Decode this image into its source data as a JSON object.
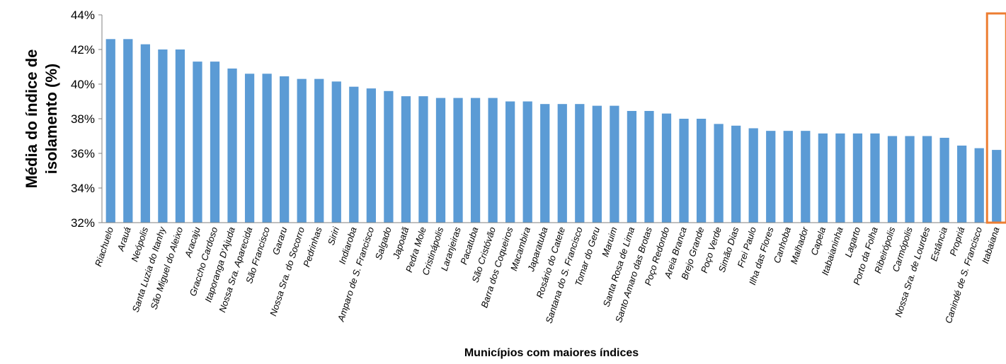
{
  "chart_data": {
    "type": "bar",
    "title": "",
    "xlabel": "Municípios com maiores índices",
    "ylabel_lines": [
      "Média do índice de",
      "isolamento (%)"
    ],
    "ylim": [
      32,
      44
    ],
    "yticks": [
      32,
      34,
      36,
      38,
      40,
      42,
      44
    ],
    "ytick_suffix": "%",
    "grid": false,
    "bar_color": "#5b9bd5",
    "highlight_color": "#ed7d31",
    "highlight_category": "Itabaiana",
    "categories": [
      "Riachuelo",
      "Arauá",
      "Neópolis",
      "Santa Luzia do Itanhy",
      "São Miguel do Aleixo",
      "Aracaju",
      "Graccho Cardoso",
      "Itaporanga D'Ajuda",
      "Nossa Sra. Aparecida",
      "São Francisco",
      "Gararu",
      "Nossa Sra. do Socorro",
      "Pedrinhas",
      "Siriri",
      "Indiaroba",
      "Amparo de S. Francisco",
      "Salgado",
      "Japoatã",
      "Pedra Mole",
      "Cristinápolis",
      "Laranjeiras",
      "Pacatuba",
      "São Cristóvão",
      "Barra dos Coqueiros",
      "Macambira",
      "Japaratuba",
      "Rosário do Catete",
      "Santana do S. Francisco",
      "Tomar do Geru",
      "Maruim",
      "Santa Rosa de Lima",
      "Santo Amaro das Brotas",
      "Poço Redondo",
      "Areia Branca",
      "Brejo Grande",
      "Poço Verde",
      "Simão Dias",
      "Frei Paulo",
      "Ilha das Flores",
      "Canhoba",
      "Malhador",
      "Capela",
      "Itabaianinha",
      "Lagarto",
      "Porto da Folha",
      "Ribeirópolis",
      "Carmópolis",
      "Nossa Sra. de Lourdes",
      "Estância",
      "Propriá",
      "Canindé de S. Francisco",
      "Itabaiana"
    ],
    "values": [
      42.6,
      42.6,
      42.3,
      42.0,
      42.0,
      41.3,
      41.3,
      40.9,
      40.6,
      40.6,
      40.45,
      40.3,
      40.3,
      40.15,
      39.85,
      39.75,
      39.6,
      39.3,
      39.3,
      39.2,
      39.2,
      39.2,
      39.2,
      39.0,
      39.0,
      38.85,
      38.85,
      38.85,
      38.75,
      38.75,
      38.45,
      38.45,
      38.3,
      38.0,
      38.0,
      37.7,
      37.6,
      37.45,
      37.3,
      37.3,
      37.3,
      37.15,
      37.15,
      37.15,
      37.15,
      37.0,
      37.0,
      37.0,
      36.9,
      36.45,
      36.3,
      36.2
    ]
  }
}
